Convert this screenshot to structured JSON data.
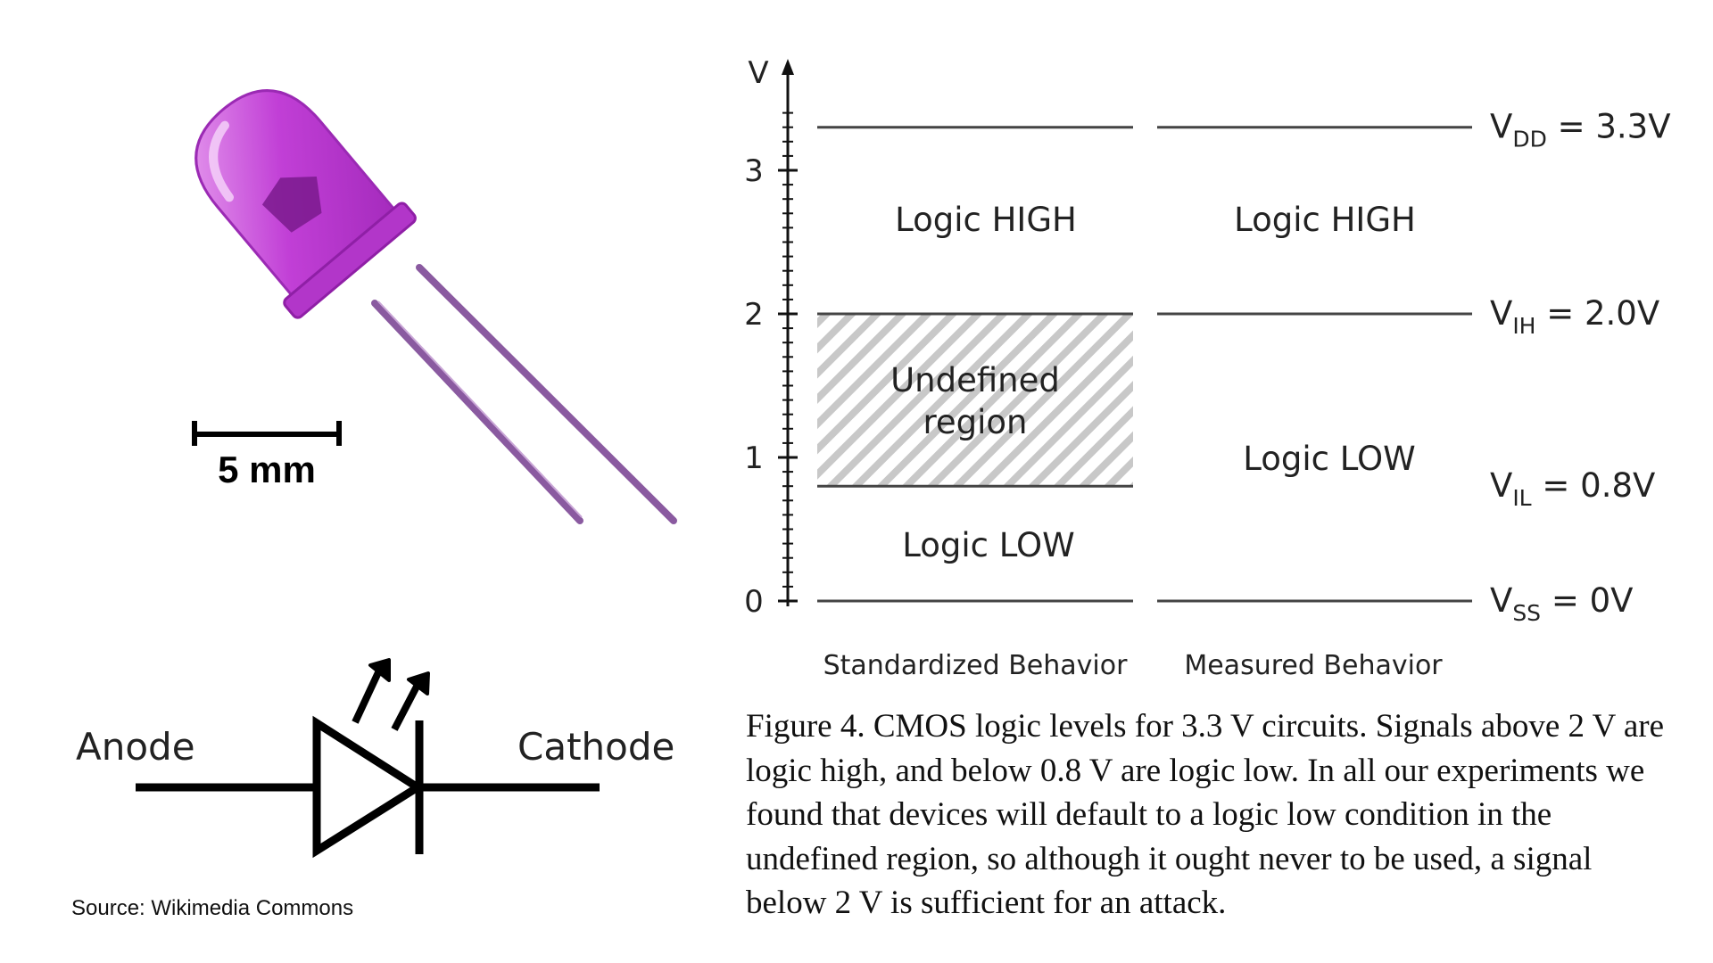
{
  "led_photo": {
    "scale_label": "5 mm",
    "colors": {
      "body": "#c13fd6",
      "body_light": "#e7a0ef",
      "leads": "#8a5aa0"
    }
  },
  "led_symbol": {
    "anode_label": "Anode",
    "cathode_label": "Cathode"
  },
  "source_text": "Source: Wikimedia Commons",
  "logic_chart": {
    "axis_label": "V",
    "y_ticks": [
      "0",
      "1",
      "2",
      "3"
    ],
    "columns": [
      "Standardized Behavior",
      "Measured Behavior"
    ],
    "std": {
      "high": "Logic HIGH",
      "undefined_line1": "Undefined",
      "undefined_line2": "region",
      "low": "Logic LOW"
    },
    "measured": {
      "high": "Logic HIGH",
      "low": "Logic LOW"
    },
    "levels": [
      {
        "main": "V",
        "sub": "DD",
        "rest": " = 3.3V"
      },
      {
        "main": "V",
        "sub": "IH",
        "rest": " = 2.0V"
      },
      {
        "main": "V",
        "sub": "IL",
        "rest": " = 0.8V"
      },
      {
        "main": "V",
        "sub": "SS",
        "rest": " = 0V"
      }
    ]
  },
  "chart_data": {
    "type": "diagram",
    "ylabel": "V",
    "ylim": [
      0,
      3.6
    ],
    "y_ticks": [
      0,
      1,
      2,
      3
    ],
    "thresholds": {
      "VDD": 3.3,
      "VIH": 2.0,
      "VIL": 0.8,
      "VSS": 0
    },
    "standardized": [
      {
        "label": "Logic LOW",
        "from": 0,
        "to": 0.8
      },
      {
        "label": "Undefined region",
        "from": 0.8,
        "to": 2.0
      },
      {
        "label": "Logic HIGH",
        "from": 2.0,
        "to": 3.3
      }
    ],
    "measured": [
      {
        "label": "Logic LOW",
        "from": 0,
        "to": 2.0
      },
      {
        "label": "Logic HIGH",
        "from": 2.0,
        "to": 3.3
      }
    ]
  },
  "caption": "Figure 4. CMOS logic levels for 3.3 V circuits. Signals above 2 V are logic high, and below 0.8 V are logic low. In all our experiments we found that devices will default to a logic low condition in the undefined region, so although it ought never to be used, a signal below 2 V is sufficient for an attack."
}
